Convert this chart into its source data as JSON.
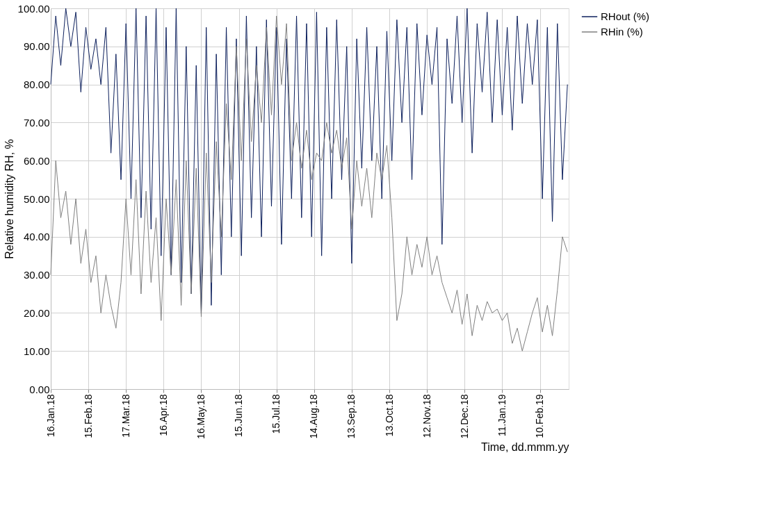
{
  "chart_data": {
    "type": "line",
    "xlabel": "Time, dd.mmm.yy",
    "ylabel": "Relative humidity RH, %",
    "x": [
      "2018-01-16",
      "2018-01-20",
      "2018-01-24",
      "2018-01-28",
      "2018-02-01",
      "2018-02-05",
      "2018-02-09",
      "2018-02-13",
      "2018-02-17",
      "2018-02-21",
      "2018-02-25",
      "2018-03-01",
      "2018-03-05",
      "2018-03-09",
      "2018-03-13",
      "2018-03-17",
      "2018-03-21",
      "2018-03-25",
      "2018-03-29",
      "2018-04-02",
      "2018-04-06",
      "2018-04-10",
      "2018-04-14",
      "2018-04-18",
      "2018-04-22",
      "2018-04-26",
      "2018-04-30",
      "2018-05-04",
      "2018-05-08",
      "2018-05-12",
      "2018-05-16",
      "2018-05-20",
      "2018-05-24",
      "2018-05-28",
      "2018-06-01",
      "2018-06-05",
      "2018-06-09",
      "2018-06-13",
      "2018-06-17",
      "2018-06-21",
      "2018-06-25",
      "2018-06-29",
      "2018-07-03",
      "2018-07-07",
      "2018-07-11",
      "2018-07-15",
      "2018-07-19",
      "2018-07-23",
      "2018-07-27",
      "2018-07-31",
      "2018-08-04",
      "2018-08-08",
      "2018-08-12",
      "2018-08-16",
      "2018-08-20",
      "2018-08-24",
      "2018-08-28",
      "2018-09-01",
      "2018-09-05",
      "2018-09-09",
      "2018-09-13",
      "2018-09-17",
      "2018-09-21",
      "2018-09-25",
      "2018-09-29",
      "2018-10-03",
      "2018-10-07",
      "2018-10-11",
      "2018-10-15",
      "2018-10-19",
      "2018-10-23",
      "2018-10-27",
      "2018-10-31",
      "2018-11-04",
      "2018-11-08",
      "2018-11-12",
      "2018-11-16",
      "2018-11-20",
      "2018-11-24",
      "2018-11-28",
      "2018-12-02",
      "2018-12-06",
      "2018-12-10",
      "2018-12-14",
      "2018-12-18",
      "2018-12-22",
      "2018-12-26",
      "2018-12-30",
      "2019-01-03",
      "2019-01-07",
      "2019-01-11",
      "2019-01-15",
      "2019-01-19",
      "2019-01-23",
      "2019-01-27",
      "2019-01-31",
      "2019-02-04",
      "2019-02-08",
      "2019-02-12",
      "2019-02-16",
      "2019-02-20",
      "2019-02-24",
      "2019-02-28",
      "2019-03-04"
    ],
    "series": [
      {
        "name": "RHout (%)",
        "color": "#0c1f5c",
        "values": [
          80,
          98,
          85,
          100,
          90,
          99,
          78,
          95,
          84,
          92,
          80,
          95,
          62,
          88,
          55,
          96,
          50,
          100,
          45,
          98,
          42,
          100,
          35,
          95,
          30,
          100,
          28,
          90,
          25,
          85,
          20,
          95,
          22,
          88,
          30,
          95,
          40,
          92,
          35,
          98,
          45,
          90,
          40,
          97,
          48,
          95,
          38,
          92,
          50,
          98,
          45,
          96,
          40,
          99,
          35,
          95,
          50,
          97,
          55,
          90,
          33,
          92,
          58,
          95,
          60,
          90,
          50,
          94,
          60,
          97,
          70,
          95,
          55,
          96,
          72,
          93,
          80,
          95,
          38,
          92,
          75,
          98,
          70,
          100,
          62,
          96,
          78,
          99,
          70,
          97,
          72,
          95,
          68,
          98,
          75,
          96,
          80,
          97,
          50,
          95,
          44,
          96,
          55,
          80
        ]
      },
      {
        "name": "RHin (%)",
        "color": "#7f7f7f",
        "values": [
          30,
          60,
          45,
          52,
          38,
          50,
          33,
          42,
          28,
          35,
          20,
          30,
          22,
          16,
          28,
          50,
          30,
          55,
          25,
          52,
          28,
          45,
          18,
          50,
          30,
          55,
          22,
          60,
          25,
          58,
          19,
          62,
          28,
          65,
          40,
          75,
          55,
          90,
          60,
          92,
          65,
          85,
          70,
          95,
          72,
          98,
          80,
          96,
          60,
          70,
          58,
          68,
          55,
          62,
          60,
          70,
          62,
          68,
          58,
          66,
          42,
          60,
          48,
          58,
          45,
          62,
          55,
          64,
          45,
          18,
          25,
          40,
          30,
          38,
          32,
          40,
          30,
          35,
          28,
          24,
          20,
          26,
          17,
          25,
          14,
          22,
          18,
          23,
          20,
          21,
          18,
          20,
          12,
          16,
          10,
          15,
          20,
          24,
          15,
          22,
          14,
          26,
          40,
          36
        ]
      }
    ],
    "xlim": [
      "2018-01-16",
      "2019-03-05"
    ],
    "xticks": [
      {
        "value": "2018-01-16",
        "label": "16.Jan.18"
      },
      {
        "value": "2018-02-15",
        "label": "15.Feb.18"
      },
      {
        "value": "2018-03-17",
        "label": "17.Mar.18"
      },
      {
        "value": "2018-04-16",
        "label": "16.Apr.18"
      },
      {
        "value": "2018-05-16",
        "label": "16.May.18"
      },
      {
        "value": "2018-06-15",
        "label": "15.Jun.18"
      },
      {
        "value": "2018-07-15",
        "label": "15.Jul.18"
      },
      {
        "value": "2018-08-14",
        "label": "14.Aug.18"
      },
      {
        "value": "2018-09-13",
        "label": "13.Sep.18"
      },
      {
        "value": "2018-10-13",
        "label": "13.Oct.18"
      },
      {
        "value": "2018-11-12",
        "label": "12.Nov.18"
      },
      {
        "value": "2018-12-12",
        "label": "12.Dec.18"
      },
      {
        "value": "2019-01-11",
        "label": "11.Jan.19"
      },
      {
        "value": "2019-02-10",
        "label": "10.Feb.19"
      }
    ],
    "ylim": [
      0,
      100
    ],
    "yticks": [
      {
        "value": 0,
        "label": "0.00"
      },
      {
        "value": 10,
        "label": "10.00"
      },
      {
        "value": 20,
        "label": "20.00"
      },
      {
        "value": 30,
        "label": "30.00"
      },
      {
        "value": 40,
        "label": "40.00"
      },
      {
        "value": 50,
        "label": "50.00"
      },
      {
        "value": 60,
        "label": "60.00"
      },
      {
        "value": 70,
        "label": "70.00"
      },
      {
        "value": 80,
        "label": "80.00"
      },
      {
        "value": 90,
        "label": "90.00"
      },
      {
        "value": 100,
        "label": "100.00"
      }
    ],
    "grid": true,
    "legend": "right",
    "line_style": "solid",
    "marker": "none"
  }
}
